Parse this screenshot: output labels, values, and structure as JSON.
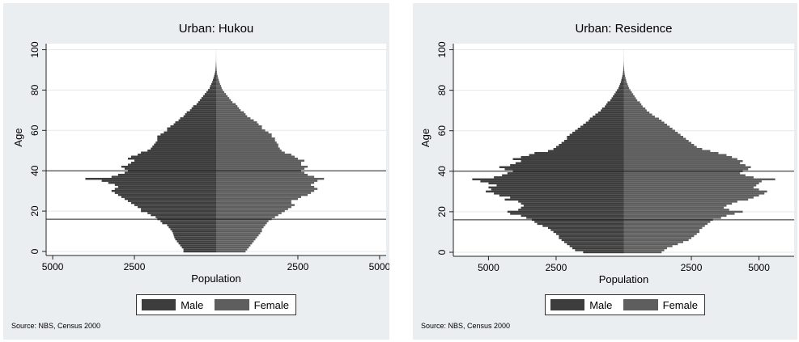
{
  "colors": {
    "male": "#3d3d3d",
    "female": "#5e5e5e",
    "background": "#eaeef1",
    "plot_bg": "#ffffff"
  },
  "legend": {
    "male": "Male",
    "female": "Female"
  },
  "source": "Source: NBS, Census 2000",
  "chart_data": [
    {
      "type": "bar",
      "orientation": "horizontal",
      "title": "Urban: Hukou",
      "xlabel": "Population",
      "ylabel": "Age",
      "xlim": [
        -5200,
        5200
      ],
      "ylim": [
        -2,
        103
      ],
      "xticks": [
        -5000,
        -2500,
        2500,
        5000
      ],
      "xtick_labels": [
        "5000",
        "2500",
        "2500",
        "5000"
      ],
      "yticks": [
        0,
        20,
        40,
        60,
        80,
        100
      ],
      "hlines": [
        40,
        16
      ],
      "male": [
        1000,
        1000,
        1050,
        1100,
        1150,
        1200,
        1250,
        1280,
        1300,
        1320,
        1350,
        1400,
        1450,
        1500,
        1650,
        1700,
        1800,
        1850,
        2000,
        2100,
        2300,
        2300,
        2400,
        2500,
        2600,
        2700,
        2800,
        2900,
        3000,
        3100,
        3200,
        3100,
        3000,
        3100,
        3300,
        3500,
        4000,
        3200,
        3000,
        2800,
        2700,
        2800,
        2900,
        2700,
        2600,
        2500,
        2700,
        2600,
        2400,
        2300,
        2100,
        2000,
        1950,
        1900,
        1850,
        1800,
        1800,
        1800,
        1700,
        1600,
        1500,
        1500,
        1400,
        1300,
        1250,
        1150,
        1100,
        1000,
        950,
        900,
        800,
        750,
        700,
        600,
        550,
        500,
        450,
        400,
        350,
        300,
        250,
        200,
        180,
        150,
        120,
        100,
        80,
        60,
        45,
        30,
        20,
        15,
        10,
        8,
        5,
        3,
        2,
        2,
        1,
        1,
        1
      ],
      "female": [
        900,
        950,
        1000,
        1050,
        1100,
        1150,
        1200,
        1250,
        1300,
        1350,
        1400,
        1400,
        1450,
        1500,
        1550,
        1600,
        1700,
        1800,
        1900,
        2000,
        2100,
        2200,
        2300,
        2400,
        2300,
        2300,
        2500,
        2600,
        2800,
        2900,
        3000,
        3100,
        3000,
        2900,
        3000,
        3100,
        3300,
        3000,
        2800,
        2700,
        2600,
        2700,
        2800,
        2600,
        2600,
        2700,
        2500,
        2400,
        2300,
        2100,
        2000,
        1950,
        1900,
        1900,
        1850,
        1800,
        1800,
        1700,
        1700,
        1600,
        1500,
        1400,
        1400,
        1300,
        1250,
        1150,
        1050,
        950,
        900,
        850,
        750,
        700,
        650,
        600,
        500,
        450,
        400,
        350,
        300,
        250,
        200,
        170,
        150,
        120,
        100,
        80,
        60,
        45,
        30,
        22,
        16,
        12,
        8,
        5,
        3,
        2,
        2,
        1,
        1,
        1,
        0
      ]
    },
    {
      "type": "bar",
      "orientation": "horizontal",
      "title": "Urban: Residence",
      "xlabel": "Population",
      "ylabel": "Age",
      "xlim": [
        -6300,
        6300
      ],
      "ylim": [
        -2,
        103
      ],
      "xticks": [
        -5000,
        -2500,
        2500,
        5000
      ],
      "xtick_labels": [
        "5000",
        "2500",
        "2500",
        "5000"
      ],
      "yticks": [
        0,
        20,
        40,
        60,
        80,
        100
      ],
      "hlines": [
        40,
        16
      ],
      "male": [
        1500,
        1800,
        1900,
        2000,
        2100,
        2200,
        2300,
        2400,
        2400,
        2500,
        2600,
        2700,
        2800,
        3000,
        3200,
        3300,
        3400,
        3600,
        3800,
        4200,
        4300,
        3900,
        3800,
        3700,
        3800,
        3900,
        4400,
        4200,
        4600,
        4800,
        5100,
        4900,
        5000,
        4700,
        5000,
        5300,
        5600,
        4800,
        4500,
        4300,
        4100,
        4400,
        4600,
        4200,
        4000,
        3800,
        4100,
        3800,
        3500,
        3300,
        2800,
        2600,
        2500,
        2400,
        2300,
        2200,
        2100,
        2100,
        2000,
        1900,
        1800,
        1700,
        1600,
        1500,
        1400,
        1300,
        1250,
        1150,
        1050,
        950,
        850,
        800,
        700,
        650,
        600,
        500,
        450,
        400,
        350,
        300,
        250,
        200,
        170,
        140,
        110,
        90,
        70,
        50,
        35,
        25,
        18,
        12,
        8,
        5,
        3,
        2,
        2,
        1,
        1,
        1,
        1
      ],
      "female": [
        1400,
        1500,
        1600,
        1800,
        2000,
        2200,
        2400,
        2500,
        2600,
        2700,
        2800,
        2800,
        2900,
        3000,
        3100,
        3200,
        3300,
        3600,
        3800,
        4100,
        4400,
        3900,
        3700,
        3800,
        4000,
        4200,
        4600,
        4800,
        5000,
        5200,
        5300,
        5000,
        4800,
        4900,
        5000,
        5100,
        5600,
        4800,
        4500,
        4300,
        4400,
        4600,
        4700,
        4500,
        4300,
        4400,
        4200,
        4000,
        3800,
        3500,
        3200,
        2900,
        2700,
        2600,
        2500,
        2400,
        2300,
        2200,
        2100,
        2000,
        1900,
        1800,
        1700,
        1600,
        1500,
        1400,
        1300,
        1150,
        1050,
        950,
        850,
        800,
        700,
        650,
        600,
        500,
        450,
        400,
        350,
        300,
        250,
        200,
        170,
        140,
        110,
        90,
        70,
        50,
        35,
        25,
        18,
        12,
        8,
        5,
        3,
        2,
        2,
        1,
        1,
        1,
        1
      ]
    }
  ]
}
